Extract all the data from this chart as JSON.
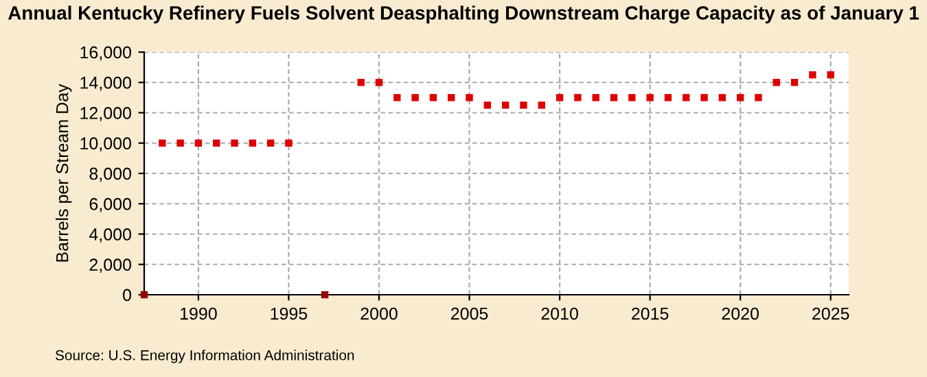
{
  "chart_data": {
    "type": "scatter",
    "title": "Annual Kentucky Refinery Fuels Solvent Deasphalting Downstream Charge Capacity as of January 1",
    "ylabel": "Barrels per Stream Day",
    "x": [
      1987,
      1988,
      1989,
      1990,
      1991,
      1992,
      1993,
      1994,
      1995,
      1997,
      1999,
      2000,
      2001,
      2002,
      2003,
      2004,
      2005,
      2006,
      2007,
      2008,
      2009,
      2010,
      2011,
      2012,
      2013,
      2014,
      2015,
      2016,
      2017,
      2018,
      2019,
      2020,
      2021,
      2022,
      2023,
      2024,
      2025
    ],
    "values": [
      0,
      10000,
      10000,
      10000,
      10000,
      10000,
      10000,
      10000,
      10000,
      0,
      14000,
      14000,
      13000,
      13000,
      13000,
      13000,
      13000,
      12500,
      12500,
      12500,
      12500,
      13000,
      13000,
      13000,
      13000,
      13000,
      13000,
      13000,
      13000,
      13000,
      13000,
      13000,
      13000,
      14000,
      14000,
      14500,
      14500
    ],
    "colors": [
      "#990000",
      "#dd0000",
      "#dd0000",
      "#dd0000",
      "#dd0000",
      "#dd0000",
      "#dd0000",
      "#dd0000",
      "#dd0000",
      "#990000",
      "#dd0000",
      "#dd0000",
      "#dd0000",
      "#dd0000",
      "#dd0000",
      "#dd0000",
      "#dd0000",
      "#dd0000",
      "#dd0000",
      "#dd0000",
      "#dd0000",
      "#dd0000",
      "#dd0000",
      "#dd0000",
      "#dd0000",
      "#dd0000",
      "#dd0000",
      "#dd0000",
      "#dd0000",
      "#dd0000",
      "#dd0000",
      "#dd0000",
      "#dd0000",
      "#dd0000",
      "#dd0000",
      "#dd0000",
      "#dd0000"
    ],
    "marker": "square",
    "xlim": [
      1987,
      2026
    ],
    "xticks": [
      1990,
      1995,
      2000,
      2005,
      2010,
      2015,
      2020,
      2025
    ],
    "ylim": [
      0,
      16000
    ],
    "yticks": [
      {
        "value": 0,
        "label": "0"
      },
      {
        "value": 2000,
        "label": "2,000"
      },
      {
        "value": 4000,
        "label": "4,000"
      },
      {
        "value": 6000,
        "label": "6,000"
      },
      {
        "value": 8000,
        "label": "8,000"
      },
      {
        "value": 10000,
        "label": "10,000"
      },
      {
        "value": 12000,
        "label": "12,000"
      },
      {
        "value": 14000,
        "label": "14,000"
      },
      {
        "value": 16000,
        "label": "16,000"
      }
    ],
    "grid": true,
    "annotations": [
      "Source: U.S. Energy Information Administration"
    ]
  }
}
